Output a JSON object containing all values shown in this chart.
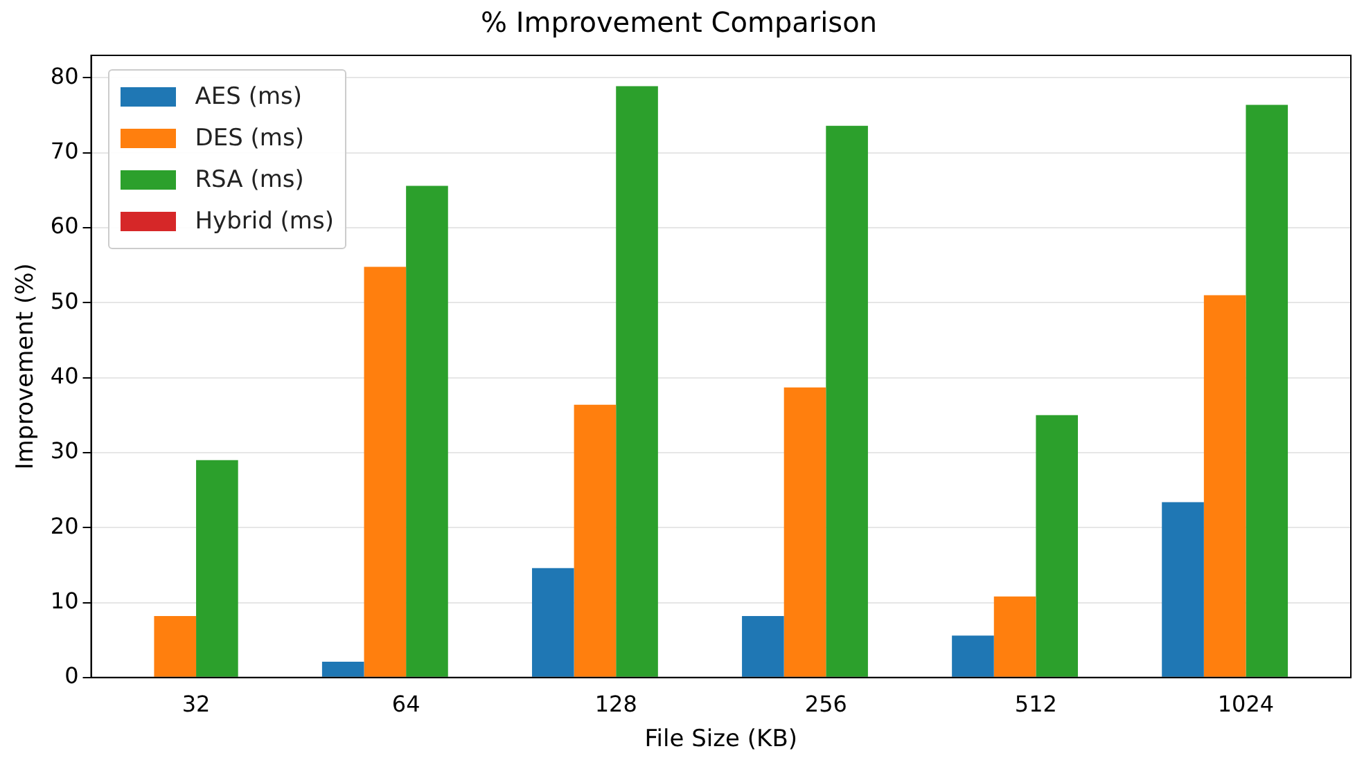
{
  "chart_data": {
    "type": "bar",
    "title": "% Improvement Comparison",
    "xlabel": "File Size (KB)",
    "ylabel": "Improvement (%)",
    "categories": [
      "32",
      "64",
      "128",
      "256",
      "512",
      "1024"
    ],
    "series": [
      {
        "name": "AES (ms)",
        "color": "#1f77b4",
        "values": [
          0,
          2.1,
          14.6,
          8.2,
          5.6,
          23.4
        ]
      },
      {
        "name": "DES (ms)",
        "color": "#ff7f0e",
        "values": [
          8.2,
          54.8,
          36.4,
          38.7,
          10.8,
          51.0
        ]
      },
      {
        "name": "RSA (ms)",
        "color": "#2ca02c",
        "values": [
          29.0,
          65.6,
          78.9,
          73.6,
          35.0,
          76.4
        ]
      },
      {
        "name": "Hybrid (ms)",
        "color": "#d62728",
        "values": [
          0,
          0,
          0,
          0,
          0,
          0
        ]
      }
    ],
    "ylim": [
      0,
      83
    ],
    "yticks": [
      0,
      10,
      20,
      30,
      40,
      50,
      60,
      70,
      80
    ],
    "grid": "y",
    "legend": "top left"
  }
}
